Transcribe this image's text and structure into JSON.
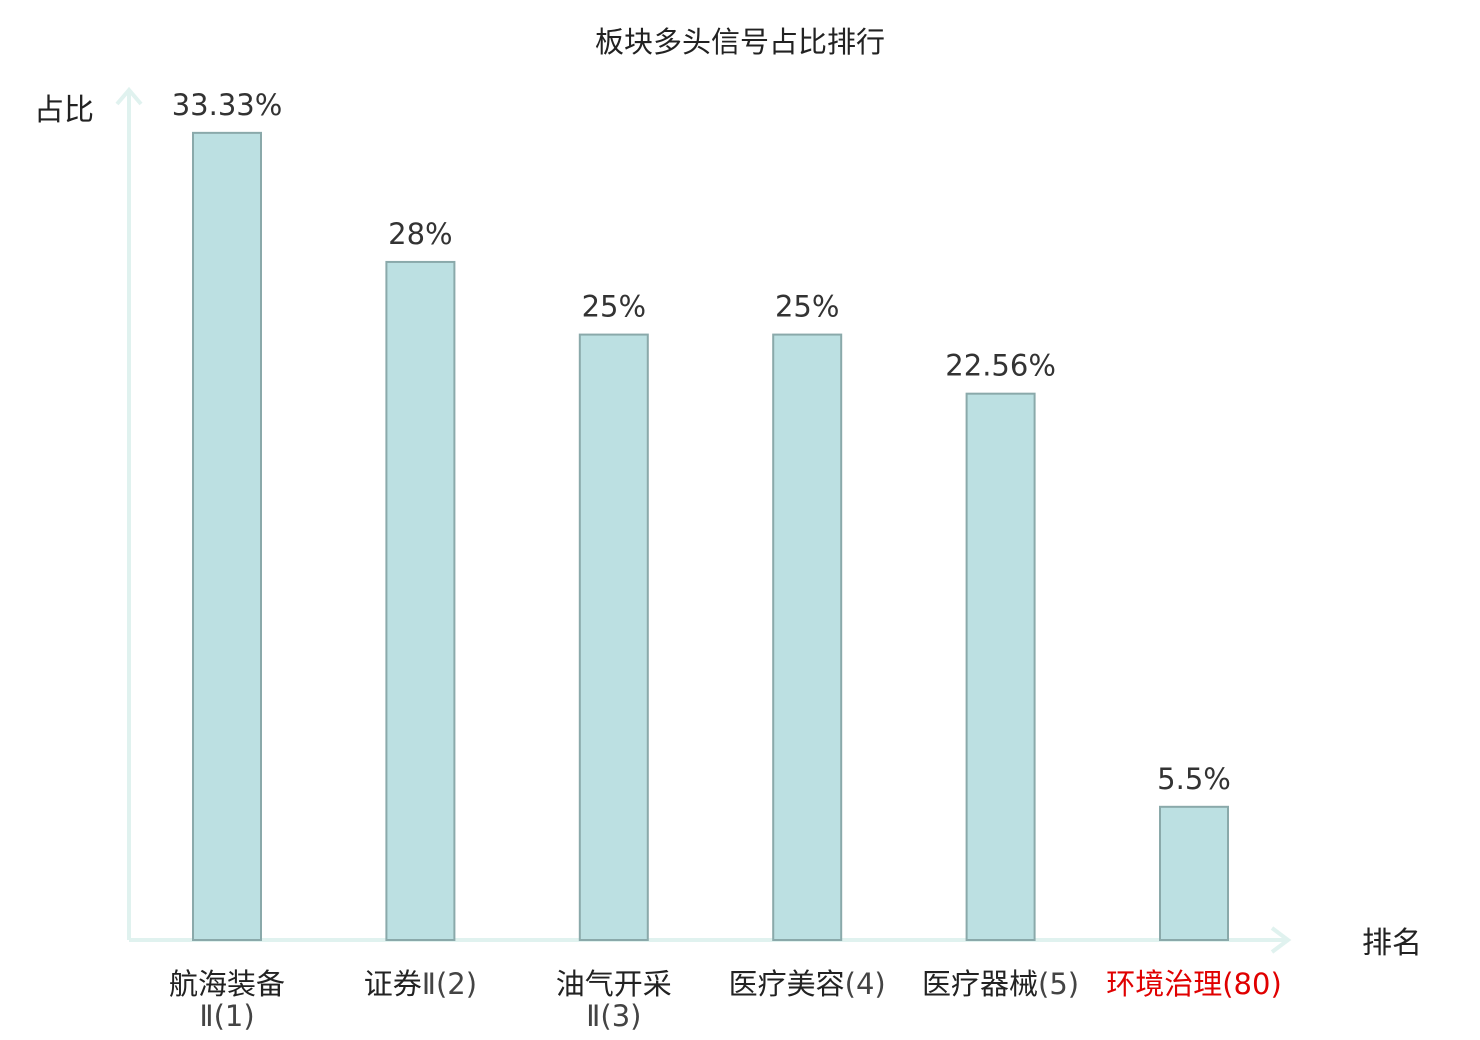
{
  "chart_data": {
    "type": "bar",
    "title": "板块多头信号占比排行",
    "ylabel": "占比",
    "xlabel": "排名",
    "ylim": [
      0,
      35.1
    ],
    "grid": false,
    "categories": [
      {
        "name": "航海装备",
        "rank": "Ⅱ(1)",
        "highlight": false
      },
      {
        "name": "证券",
        "rank": "Ⅱ(2)",
        "highlight": false
      },
      {
        "name": "油气开采",
        "rank": "Ⅱ(3)",
        "highlight": false
      },
      {
        "name": "医疗美容",
        "rank": "(4)",
        "highlight": false
      },
      {
        "name": "医疗器械",
        "rank": "(5)",
        "highlight": false
      },
      {
        "name": "环境治理",
        "rank": "(80)",
        "highlight": true
      }
    ],
    "values": [
      33.33,
      28,
      25,
      25,
      22.56,
      5.5
    ],
    "value_labels": [
      "33.33%",
      "28%",
      "25%",
      "25%",
      "22.56%",
      "5.5%"
    ]
  },
  "colors": {
    "bar_fill": "#bce0e2",
    "bar_stroke": "#8aa9aa",
    "axis": "#e0f2ef",
    "highlight": "#e00000",
    "text": "#222222"
  }
}
